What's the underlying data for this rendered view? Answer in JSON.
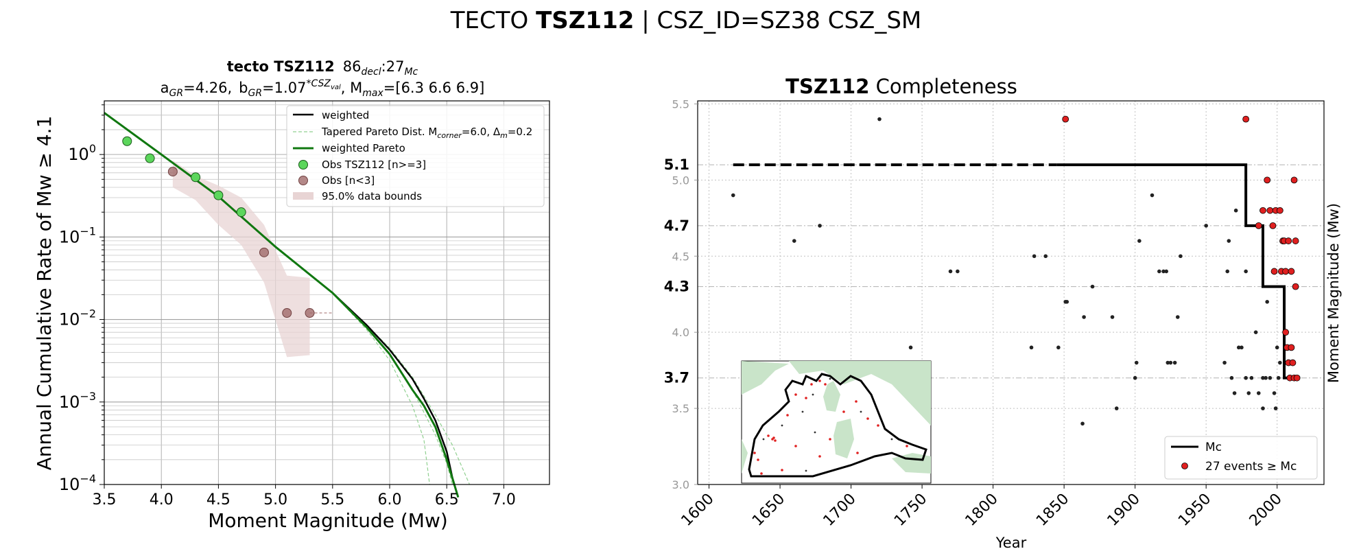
{
  "suptitle": {
    "prefix": "TECTO ",
    "bold": "TSZ112",
    "suffix": " | CSZ_ID=SZ38 CSZ_SM"
  },
  "chart_data": [
    {
      "type": "scatter",
      "title_line1": {
        "bold": "tecto TSZ112",
        "num1": "86",
        "sub1": "decl",
        "sep": ":",
        "num2": "27",
        "sub2": "Mc"
      },
      "title_line2": {
        "a_label": "a",
        "a_sub": "GR",
        "a_val": "=4.26,",
        "b_label": "b",
        "b_sub": "GR",
        "b_val": "=1.07",
        "b_sup": "*CSZ",
        "b_supsub": "val",
        "m_label": ", M",
        "m_sub": "max",
        "m_val": "=[6.3 6.6 6.9]"
      },
      "xlabel": "Moment Magnitude (Mw)",
      "ylabel": "Annual Cumulative Rate of Mw  ≥  4.1",
      "xlim": [
        3.5,
        7.4
      ],
      "ylim_log10": [
        -4,
        0.65
      ],
      "yscale": "log",
      "xticks": [
        3.5,
        4.0,
        4.5,
        5.0,
        5.5,
        6.0,
        6.5,
        7.0
      ],
      "xtick_labels": [
        "3.5",
        "4.0",
        "4.5",
        "5.0",
        "5.5",
        "6.0",
        "6.5",
        "7.0"
      ],
      "ytick_exponents": [
        0,
        -1,
        -2,
        -3,
        -4
      ],
      "grid": true,
      "legend_position": "top-right",
      "legend": [
        {
          "label": "weighted",
          "style": "line",
          "color": "#000000"
        },
        {
          "label": "Tapered Pareto Dist. M",
          "sub": "corner",
          "rest": "=6.0, Δ",
          "sub2": "m",
          "rest2": "=0.2",
          "style": "dashed",
          "color": "#90d090"
        },
        {
          "label": "weighted Pareto",
          "style": "line",
          "color": "#107810"
        },
        {
          "label": "Obs TSZ112 [n>=3]",
          "style": "marker",
          "color": "#5cd65c"
        },
        {
          "label": "Obs [n<3]",
          "style": "marker",
          "color": "#a06a6a"
        },
        {
          "label": "95.0% data bounds",
          "style": "patch",
          "color": "#e8d4d4"
        }
      ],
      "obs_good": {
        "x": [
          3.7,
          3.9,
          4.3,
          4.5,
          4.7
        ],
        "y": [
          1.45,
          0.9,
          0.53,
          0.32,
          0.2
        ]
      },
      "obs_low": {
        "x": [
          4.1,
          4.9,
          5.1,
          5.3
        ],
        "y": [
          0.62,
          0.065,
          0.012,
          0.012
        ]
      },
      "bounds": {
        "x": [
          4.1,
          4.3,
          4.5,
          4.7,
          4.9,
          5.1,
          5.3
        ],
        "upper": [
          0.85,
          0.55,
          0.42,
          0.3,
          0.14,
          0.034,
          0.032
        ],
        "lower": [
          0.4,
          0.28,
          0.14,
          0.08,
          0.028,
          0.0035,
          0.0037
        ]
      },
      "weighted": {
        "x": [
          3.5,
          4.0,
          4.5,
          5.0,
          5.5,
          5.8,
          6.0,
          6.2,
          6.3,
          6.4,
          6.5,
          6.55,
          6.6
        ],
        "y": [
          3.2,
          1.0,
          0.31,
          0.076,
          0.021,
          0.0085,
          0.0043,
          0.0019,
          0.0011,
          0.0006,
          0.00025,
          0.00012,
          7e-05
        ]
      },
      "weighted_pareto": {
        "x": [
          3.5,
          4.0,
          4.5,
          5.0,
          5.5,
          5.8,
          6.0,
          6.2,
          6.3,
          6.4,
          6.5,
          6.6
        ],
        "y": [
          3.2,
          1.0,
          0.31,
          0.076,
          0.021,
          0.008,
          0.0038,
          0.0014,
          0.0009,
          0.0005,
          0.0002,
          7e-05
        ]
      },
      "tapered_1": {
        "x": [
          5.5,
          5.8,
          6.0,
          6.2,
          6.3,
          6.35
        ],
        "y": [
          0.021,
          0.0075,
          0.0032,
          0.0009,
          0.00035,
          0.0001
        ]
      },
      "tapered_2": {
        "x": [
          5.5,
          5.8,
          6.0,
          6.2,
          6.4,
          6.5,
          6.55
        ],
        "y": [
          0.021,
          0.008,
          0.0038,
          0.0014,
          0.0004,
          0.00018,
          0.0001
        ]
      },
      "tapered_3": {
        "x": [
          5.5,
          5.8,
          6.0,
          6.2,
          6.4,
          6.55,
          6.7
        ],
        "y": [
          0.021,
          0.0085,
          0.0045,
          0.002,
          0.0007,
          0.0003,
          0.0001
        ]
      }
    },
    {
      "type": "scatter",
      "title": {
        "bold": "TSZ112",
        "rest": " Completeness"
      },
      "xlabel": "Year",
      "ylabel": "Moment Magnitude (Mw)",
      "xlim": [
        1592,
        2033
      ],
      "ylim": [
        3.0,
        5.52
      ],
      "xticks": [
        1600,
        1650,
        1700,
        1750,
        1800,
        1850,
        1900,
        1950,
        2000
      ],
      "yticks": [
        3.0,
        3.5,
        4.0,
        4.5,
        5.0,
        5.5
      ],
      "ytick_labels": [
        "3.0",
        "3.5",
        "4.0",
        "4.5",
        "5.0",
        "5.5"
      ],
      "mc_levels": [
        5.1,
        4.7,
        4.3,
        3.7
      ],
      "mc_labels": [
        "5.1",
        "4.7",
        "4.3",
        "3.7"
      ],
      "grid": true,
      "legend_position": "bottom-right",
      "legend": [
        {
          "label": "Mc",
          "style": "line",
          "color": "#000000"
        },
        {
          "label": "27 events  ≥  Mc",
          "style": "marker",
          "color": "#e02020"
        }
      ],
      "mc_step": {
        "x": [
          1617,
          1978,
          1978,
          1990,
          1990,
          2005,
          2005,
          2009
        ],
        "y": [
          5.1,
          5.1,
          4.7,
          4.7,
          4.3,
          4.3,
          3.7,
          3.7
        ]
      },
      "mc_dashed_until": 1845,
      "events_below": [
        [
          1617,
          4.9
        ],
        [
          1660,
          4.6
        ],
        [
          1678,
          4.7
        ],
        [
          1720,
          5.4
        ],
        [
          1742,
          3.9
        ],
        [
          1770,
          4.4
        ],
        [
          1775,
          4.4
        ],
        [
          1827,
          3.9
        ],
        [
          1829,
          4.5
        ],
        [
          1837,
          4.5
        ],
        [
          1846,
          3.9
        ],
        [
          1851,
          4.2
        ],
        [
          1852,
          4.2
        ],
        [
          1863,
          3.4
        ],
        [
          1864,
          4.1
        ],
        [
          1870,
          4.3
        ],
        [
          1884,
          4.1
        ],
        [
          1887,
          3.5
        ],
        [
          1900,
          3.7
        ],
        [
          1901,
          3.8
        ],
        [
          1903,
          4.6
        ],
        [
          1912,
          4.9
        ],
        [
          1917,
          4.4
        ],
        [
          1920,
          4.4
        ],
        [
          1922,
          4.4
        ],
        [
          1923,
          3.8
        ],
        [
          1925,
          3.8
        ],
        [
          1928,
          3.8
        ],
        [
          1930,
          4.1
        ],
        [
          1932,
          4.5
        ],
        [
          1950,
          4.7
        ],
        [
          1963,
          3.8
        ],
        [
          1965,
          4.4
        ],
        [
          1966,
          4.6
        ],
        [
          1968,
          3.7
        ],
        [
          1970,
          3.6
        ],
        [
          1971,
          4.8
        ],
        [
          1973,
          3.9
        ],
        [
          1975,
          3.9
        ],
        [
          1978,
          3.7
        ],
        [
          1978,
          4.4
        ],
        [
          1980,
          3.6
        ],
        [
          1982,
          3.7
        ],
        [
          1985,
          4.0
        ],
        [
          1987,
          3.6
        ],
        [
          1990,
          3.7
        ],
        [
          1990,
          3.5
        ],
        [
          1992,
          3.7
        ],
        [
          1993,
          4.2
        ],
        [
          1995,
          3.7
        ],
        [
          1998,
          3.6
        ],
        [
          1999,
          3.5
        ],
        [
          2000,
          3.9
        ],
        [
          2001,
          3.7
        ],
        [
          2002,
          3.8
        ]
      ],
      "events_above": [
        [
          1851,
          5.4
        ],
        [
          1978,
          5.4
        ],
        [
          1987,
          4.7
        ],
        [
          1990,
          4.8
        ],
        [
          1993,
          5.0
        ],
        [
          1995,
          4.8
        ],
        [
          1997,
          4.7
        ],
        [
          1998,
          4.4
        ],
        [
          1999,
          4.8
        ],
        [
          2002,
          4.8
        ],
        [
          2003,
          4.4
        ],
        [
          2004,
          4.6
        ],
        [
          2005,
          4.6
        ],
        [
          2006,
          4.0
        ],
        [
          2006,
          4.4
        ],
        [
          2007,
          3.9
        ],
        [
          2008,
          4.6
        ],
        [
          2008,
          3.8
        ],
        [
          2009,
          3.7
        ],
        [
          2010,
          4.4
        ],
        [
          2010,
          3.9
        ],
        [
          2011,
          3.8
        ],
        [
          2012,
          3.7
        ],
        [
          2012,
          5.0
        ],
        [
          2013,
          4.6
        ],
        [
          2013,
          4.3
        ],
        [
          2014,
          3.7
        ]
      ],
      "inset": {
        "description_name": "map-inset",
        "land_color": "#c9e4c9",
        "event_color": "#e02020"
      }
    }
  ]
}
